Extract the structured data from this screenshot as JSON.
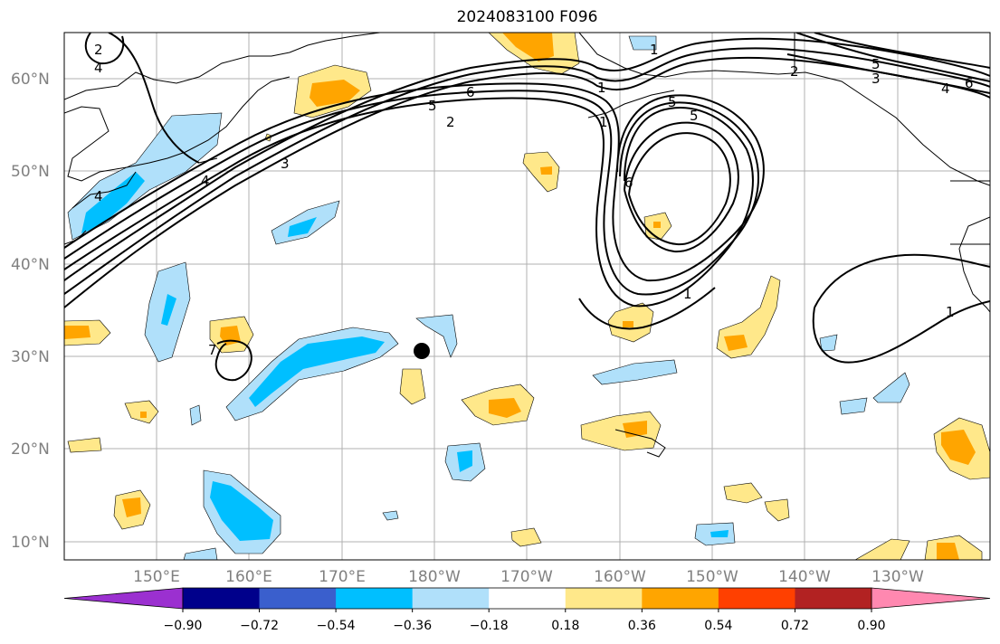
{
  "title": "2024083100 F096",
  "lat_labels": [
    "60°N",
    "50°N",
    "40°N",
    "30°N",
    "20°N",
    "10°N"
  ],
  "lon_labels": [
    "150°E",
    "160°E",
    "170°E",
    "180°W",
    "170°W",
    "160°W",
    "150°W",
    "140°W",
    "130°W"
  ],
  "colorbar": {
    "ticks": [
      "−0.90",
      "−0.72",
      "−0.54",
      "−0.36",
      "−0.18",
      "0.18",
      "0.36",
      "0.54",
      "0.72",
      "0.90"
    ],
    "colors": [
      "#9b30d0",
      "#00008b",
      "#3a5fcd",
      "#00bfff",
      "#b0e0fa",
      "#ffffff",
      "#ffe88a",
      "#ffa500",
      "#ff4000",
      "#b22222",
      "#ff88b0"
    ]
  },
  "contour_labels": [
    "2",
    "4",
    "6",
    "5",
    "2",
    "3",
    "4",
    "4",
    "1",
    "5",
    "1",
    "6",
    "1",
    "2",
    "5",
    "3",
    "4",
    "6",
    "1",
    "1",
    "7",
    "5"
  ],
  "colors": {
    "pos_light": "#ffe88a",
    "pos_mid": "#ffa500",
    "neg_light": "#b0e0fa",
    "neg_mid": "#00bfff",
    "grid": "#b0b0b0",
    "land": "#000000"
  },
  "markers": {
    "center_dot": "storm-center"
  }
}
